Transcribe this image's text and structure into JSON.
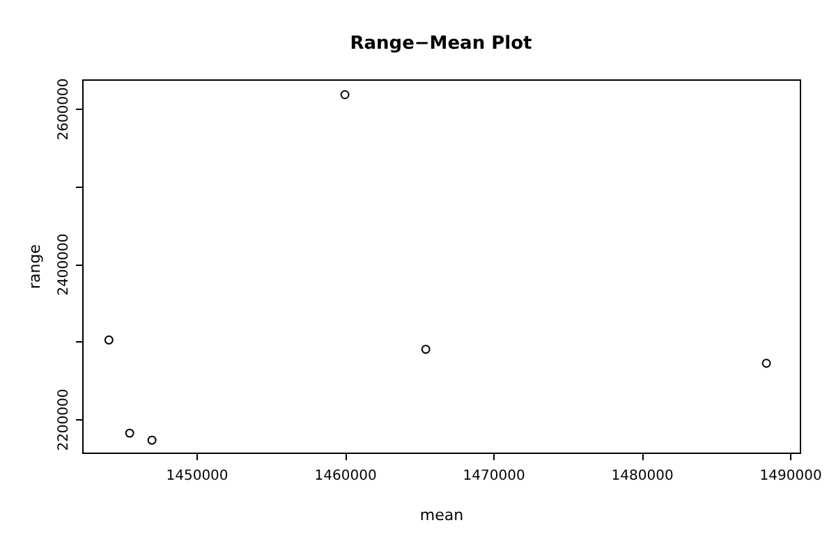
{
  "chart_data": {
    "type": "scatter",
    "title": "Range−Mean Plot",
    "xlabel": "mean",
    "ylabel": "range",
    "x": [
      1444100,
      1445500,
      1447000,
      1460000,
      1465450,
      1488400
    ],
    "values": [
      2302000,
      2182000,
      2173000,
      2618000,
      2290000,
      2272000
    ],
    "color": "#000000",
    "marker": "circle",
    "grid": false,
    "xlim": [
      1442300,
      1490650
    ],
    "ylim": [
      2157000,
      2637700
    ],
    "xticks": [
      1450000,
      1460000,
      1470000,
      1480000,
      1490000
    ],
    "yticks": [
      2200000,
      {
        "value": 2300000,
        "label": null
      },
      2400000,
      {
        "value": 2500000,
        "label": null
      },
      2600000
    ]
  }
}
